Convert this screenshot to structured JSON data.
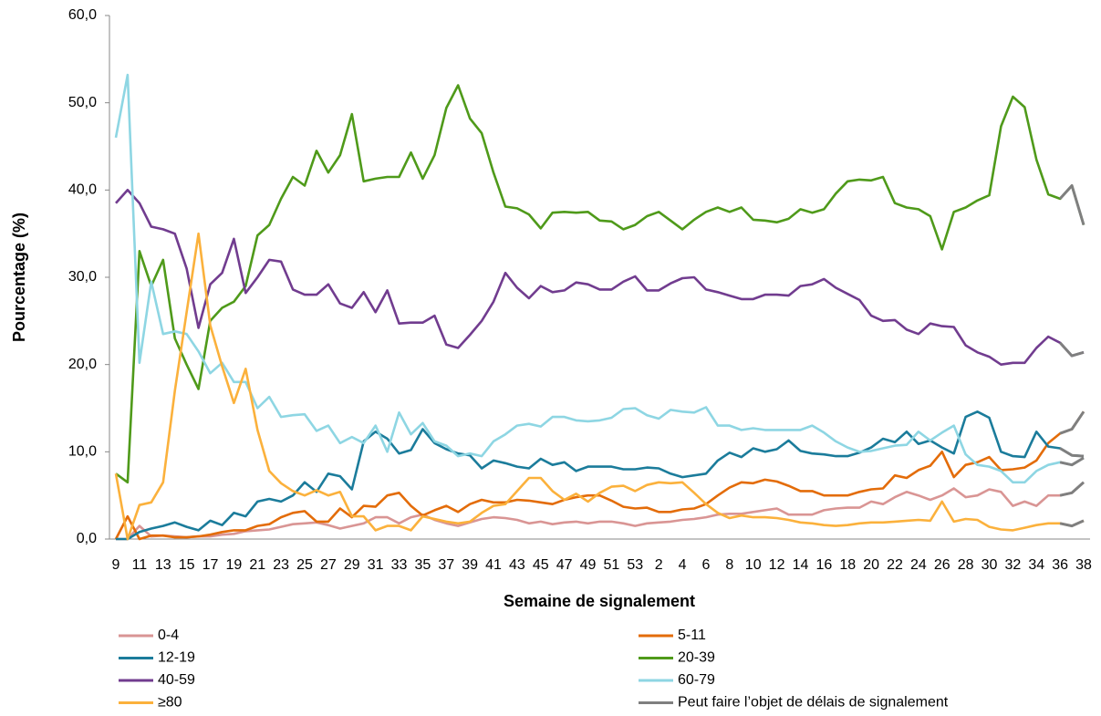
{
  "chart_data": {
    "type": "line",
    "ylabel": "Pourcentage (%)",
    "xlabel": "Semaine de signalement",
    "categories": [
      "9",
      null,
      "11",
      null,
      "13",
      null,
      "15",
      null,
      "17",
      null,
      "19",
      null,
      "21",
      null,
      "23",
      null,
      "25",
      null,
      "27",
      null,
      "29",
      null,
      "31",
      null,
      "33",
      null,
      "35",
      null,
      "37",
      null,
      "39",
      null,
      "41",
      null,
      "43",
      null,
      "45",
      null,
      "47",
      null,
      "49",
      null,
      "51",
      null,
      "53",
      null,
      "2",
      null,
      "4",
      null,
      "6",
      null,
      "8",
      null,
      "10",
      null,
      "12",
      null,
      "14",
      null,
      "16",
      null,
      "18",
      null,
      "20",
      null,
      "22",
      null,
      "24",
      null,
      "26",
      null,
      "28",
      null,
      "30",
      null,
      "32",
      null,
      "34",
      null,
      "36",
      null,
      "38"
    ],
    "ylim": [
      0,
      60
    ],
    "yticks": [
      {
        "value": 0,
        "label": "0,0"
      },
      {
        "value": 10,
        "label": "10,0"
      },
      {
        "value": 20,
        "label": "20,0"
      },
      {
        "value": 30,
        "label": "30,0"
      },
      {
        "value": 40,
        "label": "40,0"
      },
      {
        "value": 50,
        "label": "50,0"
      },
      {
        "value": 60,
        "label": "60,0"
      }
    ],
    "grid": false,
    "legend": "bottom",
    "series": [
      {
        "name": "0-4",
        "color": "#d99594",
        "values": [
          0,
          0,
          1.5,
          0.3,
          0.4,
          0.3,
          0.2,
          0.3,
          0.3,
          0.5,
          0.6,
          0.9,
          1,
          1.1,
          1.4,
          1.7,
          1.8,
          1.9,
          1.6,
          1.2,
          1.5,
          1.8,
          2.5,
          2.5,
          1.8,
          2.5,
          2.8,
          2.2,
          1.8,
          1.5,
          1.9,
          2.3,
          2.5,
          2.4,
          2.2,
          1.8,
          2,
          1.7,
          1.9,
          2,
          1.8,
          2,
          2,
          1.8,
          1.5,
          1.8,
          1.9,
          2,
          2.2,
          2.3,
          2.5,
          2.8,
          2.9,
          2.9,
          3.1,
          3.3,
          3.5,
          2.8,
          2.8,
          2.8,
          3.3,
          3.5,
          3.6,
          3.6,
          4.3,
          4,
          4.8,
          5.4,
          5,
          4.5,
          5,
          5.8,
          4.8,
          5,
          5.7,
          5.4,
          3.8,
          4.3,
          3.8,
          5,
          5,
          5.3,
          6.5
        ]
      },
      {
        "name": "5-11",
        "color": "#e36c09",
        "values": [
          0,
          2.6,
          0,
          0.4,
          0.4,
          0.2,
          0.2,
          0.3,
          0.5,
          0.8,
          1,
          1,
          1.5,
          1.7,
          2.5,
          3,
          3.2,
          2,
          2,
          3.5,
          2.5,
          3.8,
          3.7,
          5,
          5.3,
          3.8,
          2.7,
          3.3,
          3.8,
          3.1,
          4,
          4.5,
          4.2,
          4.2,
          4.5,
          4.4,
          4.2,
          4,
          4.5,
          4.8,
          5,
          5,
          4.4,
          3.7,
          3.5,
          3.6,
          3.1,
          3.1,
          3.4,
          3.5,
          4,
          5,
          5.9,
          6.5,
          6.4,
          6.8,
          6.6,
          6.1,
          5.5,
          5.5,
          5,
          5,
          5,
          5.4,
          5.7,
          5.8,
          7.3,
          7,
          7.9,
          8.4,
          10,
          7.1,
          8.5,
          8.8,
          9.4,
          7.9,
          8,
          8.2,
          9,
          11,
          12.1,
          12.6,
          14.6
        ]
      },
      {
        "name": "12-19",
        "color": "#1b7c9b",
        "values": [
          0,
          0,
          0.8,
          1.2,
          1.5,
          1.9,
          1.4,
          1,
          2.1,
          1.6,
          3,
          2.6,
          4.3,
          4.6,
          4.3,
          5,
          6.5,
          5.4,
          7.5,
          7.2,
          5.7,
          11.2,
          12.3,
          11.5,
          9.8,
          10.2,
          12.6,
          11,
          10.3,
          9.8,
          9.6,
          8.1,
          9,
          8.7,
          8.3,
          8.1,
          9.2,
          8.5,
          8.8,
          7.8,
          8.3,
          8.3,
          8.3,
          8,
          8,
          8.2,
          8.1,
          7.5,
          7.1,
          7.3,
          7.5,
          9,
          9.9,
          9.4,
          10.4,
          10,
          10.3,
          11.3,
          10.1,
          9.8,
          9.7,
          9.5,
          9.5,
          9.9,
          10.5,
          11.5,
          11.1,
          12.3,
          10.9,
          11.3,
          10.5,
          9.8,
          14,
          14.6,
          13.9,
          10,
          9.5,
          9.4,
          12.3,
          10.6,
          10.4,
          9.6,
          9.5
        ]
      },
      {
        "name": "20-39",
        "color": "#4f9a1a",
        "values": [
          7.5,
          6.5,
          33,
          29,
          32,
          23,
          20,
          17.2,
          25,
          26.5,
          27.2,
          29,
          34.8,
          36,
          39,
          41.5,
          40.5,
          44.5,
          42,
          44,
          48.7,
          41,
          41.3,
          41.5,
          41.5,
          44.3,
          41.3,
          44,
          49.4,
          52,
          48.2,
          46.5,
          42,
          38.1,
          37.9,
          37.2,
          35.6,
          37.4,
          37.5,
          37.4,
          37.5,
          36.5,
          36.4,
          35.5,
          36,
          37,
          37.5,
          36.5,
          35.5,
          36.6,
          37.5,
          38,
          37.5,
          38,
          36.6,
          36.5,
          36.3,
          36.7,
          37.8,
          37.4,
          37.8,
          39.6,
          41,
          41.2,
          41.1,
          41.5,
          38.5,
          38,
          37.8,
          37,
          33.2,
          37.5,
          38,
          38.8,
          39.4,
          47.3,
          50.7,
          49.5,
          43.5,
          39.5,
          39,
          40.5,
          36
        ]
      },
      {
        "name": "40-59",
        "color": "#713c8f",
        "values": [
          38.5,
          40,
          38.5,
          35.8,
          35.5,
          35,
          31,
          24.2,
          29.2,
          30.5,
          34.4,
          28.2,
          30,
          32,
          31.8,
          28.6,
          28,
          28,
          29.2,
          27,
          26.5,
          28.3,
          26,
          28.5,
          24.7,
          24.8,
          24.8,
          25.6,
          22.3,
          21.9,
          23.4,
          25,
          27.2,
          30.5,
          28.8,
          27.6,
          29,
          28.3,
          28.5,
          29.4,
          29.2,
          28.6,
          28.6,
          29.5,
          30.1,
          28.5,
          28.5,
          29.3,
          29.9,
          30,
          28.6,
          28.3,
          27.9,
          27.5,
          27.5,
          28,
          28,
          27.9,
          29,
          29.2,
          29.8,
          28.8,
          28.1,
          27.4,
          25.6,
          25,
          25.1,
          24,
          23.5,
          24.7,
          24.4,
          24.3,
          22.2,
          21.4,
          20.9,
          20,
          20.2,
          20.2,
          21.9,
          23.2,
          22.5,
          21,
          21.4
        ]
      },
      {
        "name": "60-79",
        "color": "#8ed6e3",
        "values": [
          46,
          53.2,
          20.2,
          29.5,
          23.5,
          23.8,
          23.5,
          21.5,
          19,
          20.2,
          18,
          18,
          15,
          16.3,
          14,
          14.2,
          14.3,
          12.4,
          13,
          11,
          11.7,
          11,
          13,
          10,
          14.5,
          12,
          13.3,
          11.2,
          10.7,
          9.5,
          9.8,
          9.5,
          11.2,
          12,
          13,
          13.2,
          12.9,
          14,
          14,
          13.6,
          13.5,
          13.6,
          13.9,
          14.9,
          15,
          14.2,
          13.8,
          14.8,
          14.6,
          14.5,
          15.1,
          13,
          13,
          12.5,
          12.7,
          12.5,
          12.5,
          12.5,
          12.5,
          13,
          12.2,
          11.2,
          10.5,
          10,
          10.1,
          10.4,
          10.7,
          10.8,
          12.3,
          11.3,
          12.2,
          13,
          9.7,
          8.5,
          8.3,
          7.8,
          6.5,
          6.5,
          7.8,
          8.5,
          8.8,
          8.5,
          9.3
        ]
      },
      {
        "name": "≥80",
        "color": "#fbb13c",
        "values": [
          7.5,
          0,
          3.9,
          4.2,
          6.5,
          17,
          26,
          35,
          24.5,
          19.8,
          15.6,
          19.5,
          12.5,
          7.8,
          6.4,
          5.5,
          5,
          5.6,
          5,
          5.4,
          2.6,
          2.6,
          1,
          1.5,
          1.5,
          1,
          2.6,
          2.3,
          2,
          1.8,
          2,
          3,
          3.8,
          4,
          5.5,
          7,
          7,
          5.5,
          4.5,
          5.2,
          4.3,
          5.3,
          6,
          6.1,
          5.5,
          6.2,
          6.5,
          6.4,
          6.5,
          5.3,
          4,
          3,
          2.4,
          2.7,
          2.5,
          2.5,
          2.4,
          2.2,
          1.9,
          1.8,
          1.6,
          1.5,
          1.6,
          1.8,
          1.9,
          1.9,
          2,
          2.1,
          2.2,
          2.1,
          4.3,
          2,
          2.3,
          2.2,
          1.4,
          1.1,
          1,
          1.3,
          1.6,
          1.8,
          1.8,
          1.5,
          2.1
        ]
      },
      {
        "name": "Peut faire l’objet de délais de signalement",
        "color": "#7f7f7f",
        "last_points": 3
      }
    ]
  }
}
